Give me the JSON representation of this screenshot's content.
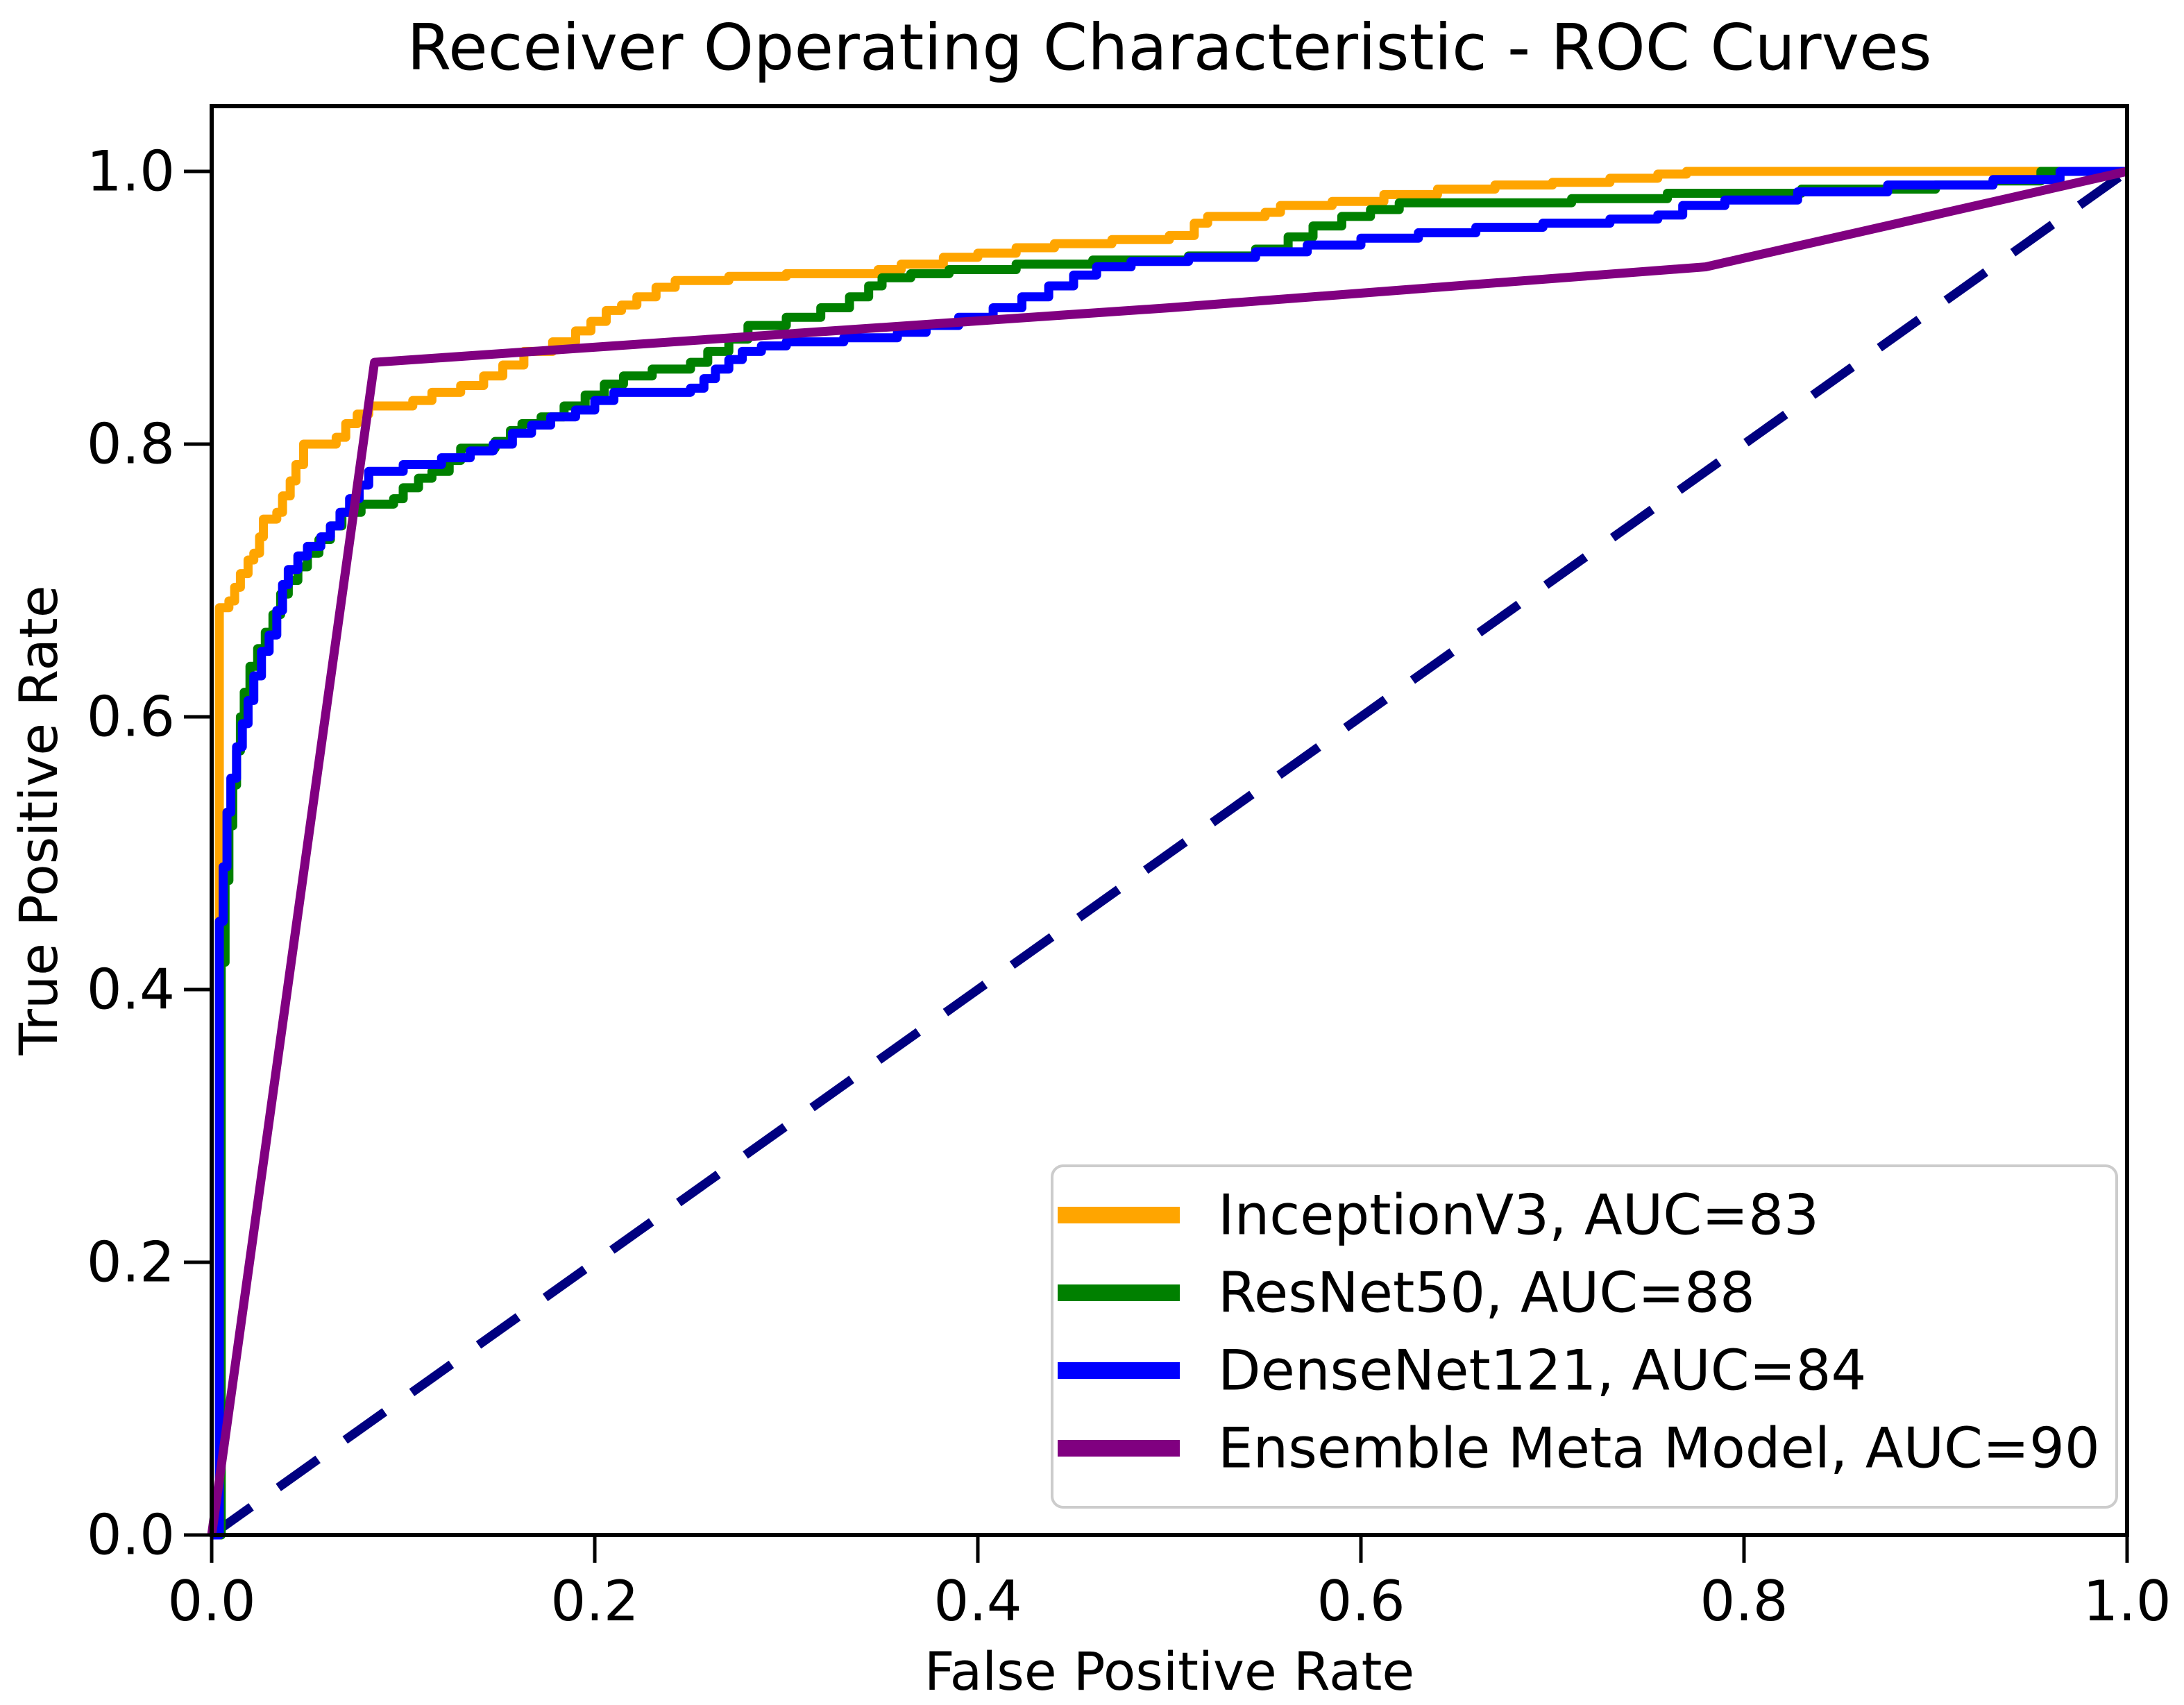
{
  "chart_data": {
    "type": "line",
    "subtype": "roc-curves",
    "title": "Receiver Operating Characteristic - ROC Curves",
    "xlabel": "False Positive Rate",
    "ylabel": "True Positive Rate",
    "xlim": [
      0.0,
      1.0
    ],
    "ylim": [
      0.0,
      1.05
    ],
    "grid": false,
    "x_ticks": {
      "values": [
        0.0,
        0.2,
        0.4,
        0.6,
        0.8,
        1.0
      ],
      "labels": [
        "0.0",
        "0.2",
        "0.4",
        "0.6",
        "0.8",
        "1.0"
      ]
    },
    "y_ticks": {
      "values": [
        0.0,
        0.2,
        0.4,
        0.6,
        0.8,
        1.0
      ],
      "labels": [
        "0.0",
        "0.2",
        "0.4",
        "0.6",
        "0.8",
        "1.0"
      ]
    },
    "legend": {
      "position": "lower right",
      "border_color": "#cccccc",
      "background": "#ffffff"
    },
    "series": [
      {
        "name": "InceptionV3",
        "auc": 83,
        "label": "InceptionV3, AUC=83",
        "color": "#FFA500",
        "line_style": "solid",
        "interp": "step",
        "points": [
          [
            0,
            0
          ],
          [
            0.004,
            0.45
          ],
          [
            0.004,
            0.68
          ],
          [
            0.009,
            0.685
          ],
          [
            0.012,
            0.695
          ],
          [
            0.015,
            0.705
          ],
          [
            0.019,
            0.715
          ],
          [
            0.022,
            0.72
          ],
          [
            0.025,
            0.732
          ],
          [
            0.027,
            0.745
          ],
          [
            0.034,
            0.75
          ],
          [
            0.037,
            0.762
          ],
          [
            0.041,
            0.773
          ],
          [
            0.044,
            0.785
          ],
          [
            0.048,
            0.8
          ],
          [
            0.065,
            0.805
          ],
          [
            0.07,
            0.815
          ],
          [
            0.076,
            0.822
          ],
          [
            0.082,
            0.828
          ],
          [
            0.105,
            0.832
          ],
          [
            0.115,
            0.838
          ],
          [
            0.13,
            0.843
          ],
          [
            0.142,
            0.85
          ],
          [
            0.152,
            0.858
          ],
          [
            0.163,
            0.868
          ],
          [
            0.178,
            0.875
          ],
          [
            0.19,
            0.883
          ],
          [
            0.198,
            0.89
          ],
          [
            0.206,
            0.898
          ],
          [
            0.214,
            0.902
          ],
          [
            0.222,
            0.908
          ],
          [
            0.232,
            0.915
          ],
          [
            0.242,
            0.92
          ],
          [
            0.27,
            0.923
          ],
          [
            0.3,
            0.925
          ],
          [
            0.348,
            0.928
          ],
          [
            0.36,
            0.932
          ],
          [
            0.382,
            0.937
          ],
          [
            0.4,
            0.94
          ],
          [
            0.42,
            0.944
          ],
          [
            0.44,
            0.947
          ],
          [
            0.47,
            0.95
          ],
          [
            0.5,
            0.953
          ],
          [
            0.513,
            0.962
          ],
          [
            0.52,
            0.967
          ],
          [
            0.55,
            0.97
          ],
          [
            0.558,
            0.975
          ],
          [
            0.585,
            0.978
          ],
          [
            0.612,
            0.983
          ],
          [
            0.64,
            0.987
          ],
          [
            0.67,
            0.99
          ],
          [
            0.7,
            0.992
          ],
          [
            0.73,
            0.995
          ],
          [
            0.755,
            0.998
          ],
          [
            0.77,
            1.0
          ],
          [
            1,
            1
          ]
        ]
      },
      {
        "name": "ResNet50",
        "auc": 88,
        "label": "ResNet50, AUC=88",
        "color": "#008000",
        "line_style": "solid",
        "interp": "step",
        "points": [
          [
            0,
            0
          ],
          [
            0.005,
            0.27
          ],
          [
            0.005,
            0.42
          ],
          [
            0.007,
            0.48
          ],
          [
            0.009,
            0.52
          ],
          [
            0.011,
            0.55
          ],
          [
            0.013,
            0.575
          ],
          [
            0.015,
            0.6
          ],
          [
            0.017,
            0.618
          ],
          [
            0.02,
            0.637
          ],
          [
            0.024,
            0.65
          ],
          [
            0.028,
            0.662
          ],
          [
            0.032,
            0.675
          ],
          [
            0.036,
            0.69
          ],
          [
            0.04,
            0.7
          ],
          [
            0.045,
            0.71
          ],
          [
            0.05,
            0.72
          ],
          [
            0.056,
            0.73
          ],
          [
            0.062,
            0.74
          ],
          [
            0.068,
            0.75
          ],
          [
            0.078,
            0.756
          ],
          [
            0.095,
            0.76
          ],
          [
            0.1,
            0.768
          ],
          [
            0.108,
            0.775
          ],
          [
            0.115,
            0.78
          ],
          [
            0.124,
            0.788
          ],
          [
            0.13,
            0.797
          ],
          [
            0.148,
            0.802
          ],
          [
            0.156,
            0.81
          ],
          [
            0.162,
            0.815
          ],
          [
            0.172,
            0.82
          ],
          [
            0.184,
            0.828
          ],
          [
            0.195,
            0.836
          ],
          [
            0.205,
            0.844
          ],
          [
            0.215,
            0.85
          ],
          [
            0.23,
            0.855
          ],
          [
            0.25,
            0.86
          ],
          [
            0.259,
            0.868
          ],
          [
            0.27,
            0.877
          ],
          [
            0.28,
            0.887
          ],
          [
            0.3,
            0.893
          ],
          [
            0.318,
            0.9
          ],
          [
            0.333,
            0.908
          ],
          [
            0.343,
            0.916
          ],
          [
            0.35,
            0.922
          ],
          [
            0.365,
            0.925
          ],
          [
            0.385,
            0.928
          ],
          [
            0.42,
            0.932
          ],
          [
            0.46,
            0.935
          ],
          [
            0.51,
            0.938
          ],
          [
            0.545,
            0.943
          ],
          [
            0.562,
            0.952
          ],
          [
            0.575,
            0.96
          ],
          [
            0.59,
            0.967
          ],
          [
            0.605,
            0.972
          ],
          [
            0.62,
            0.977
          ],
          [
            0.71,
            0.98
          ],
          [
            0.76,
            0.984
          ],
          [
            0.83,
            0.987
          ],
          [
            0.9,
            0.99
          ],
          [
            0.93,
            0.993
          ],
          [
            0.955,
            1.0
          ],
          [
            1,
            1
          ]
        ]
      },
      {
        "name": "DenseNet121",
        "auc": 84,
        "label": "DenseNet121, AUC=84",
        "color": "#0000FF",
        "line_style": "solid",
        "interp": "step",
        "points": [
          [
            0,
            0
          ],
          [
            0.004,
            0.45
          ],
          [
            0.006,
            0.49
          ],
          [
            0.008,
            0.53
          ],
          [
            0.01,
            0.555
          ],
          [
            0.013,
            0.578
          ],
          [
            0.016,
            0.595
          ],
          [
            0.019,
            0.612
          ],
          [
            0.022,
            0.63
          ],
          [
            0.026,
            0.648
          ],
          [
            0.03,
            0.66
          ],
          [
            0.034,
            0.678
          ],
          [
            0.037,
            0.697
          ],
          [
            0.04,
            0.708
          ],
          [
            0.045,
            0.718
          ],
          [
            0.05,
            0.725
          ],
          [
            0.057,
            0.732
          ],
          [
            0.062,
            0.74
          ],
          [
            0.067,
            0.75
          ],
          [
            0.072,
            0.76
          ],
          [
            0.077,
            0.77
          ],
          [
            0.082,
            0.78
          ],
          [
            0.1,
            0.785
          ],
          [
            0.12,
            0.79
          ],
          [
            0.135,
            0.795
          ],
          [
            0.147,
            0.8
          ],
          [
            0.157,
            0.808
          ],
          [
            0.167,
            0.814
          ],
          [
            0.177,
            0.82
          ],
          [
            0.19,
            0.825
          ],
          [
            0.2,
            0.832
          ],
          [
            0.21,
            0.838
          ],
          [
            0.25,
            0.841
          ],
          [
            0.257,
            0.848
          ],
          [
            0.263,
            0.855
          ],
          [
            0.27,
            0.862
          ],
          [
            0.277,
            0.868
          ],
          [
            0.287,
            0.872
          ],
          [
            0.3,
            0.875
          ],
          [
            0.33,
            0.878
          ],
          [
            0.358,
            0.882
          ],
          [
            0.373,
            0.887
          ],
          [
            0.39,
            0.893
          ],
          [
            0.408,
            0.9
          ],
          [
            0.423,
            0.908
          ],
          [
            0.437,
            0.916
          ],
          [
            0.45,
            0.924
          ],
          [
            0.462,
            0.93
          ],
          [
            0.48,
            0.934
          ],
          [
            0.51,
            0.937
          ],
          [
            0.545,
            0.941
          ],
          [
            0.572,
            0.946
          ],
          [
            0.6,
            0.951
          ],
          [
            0.63,
            0.955
          ],
          [
            0.66,
            0.959
          ],
          [
            0.695,
            0.962
          ],
          [
            0.73,
            0.965
          ],
          [
            0.755,
            0.968
          ],
          [
            0.768,
            0.975
          ],
          [
            0.79,
            0.979
          ],
          [
            0.828,
            0.985
          ],
          [
            0.875,
            0.99
          ],
          [
            0.93,
            0.994
          ],
          [
            0.965,
            1.0
          ],
          [
            1,
            1
          ]
        ]
      },
      {
        "name": "Ensemble Meta Model",
        "auc": 90,
        "label": "Ensemble Meta Model, AUC=90",
        "color": "#800080",
        "line_style": "solid",
        "interp": "linear",
        "points": [
          [
            0,
            0
          ],
          [
            0.085,
            0.86
          ],
          [
            0.5,
            0.9
          ],
          [
            0.78,
            0.93
          ],
          [
            1,
            1
          ]
        ]
      }
    ],
    "reference_line": {
      "name": "chance-diagonal",
      "color": "#000080",
      "line_style": "dashed",
      "interp": "linear",
      "points": [
        [
          0,
          0
        ],
        [
          1,
          1
        ]
      ]
    }
  }
}
